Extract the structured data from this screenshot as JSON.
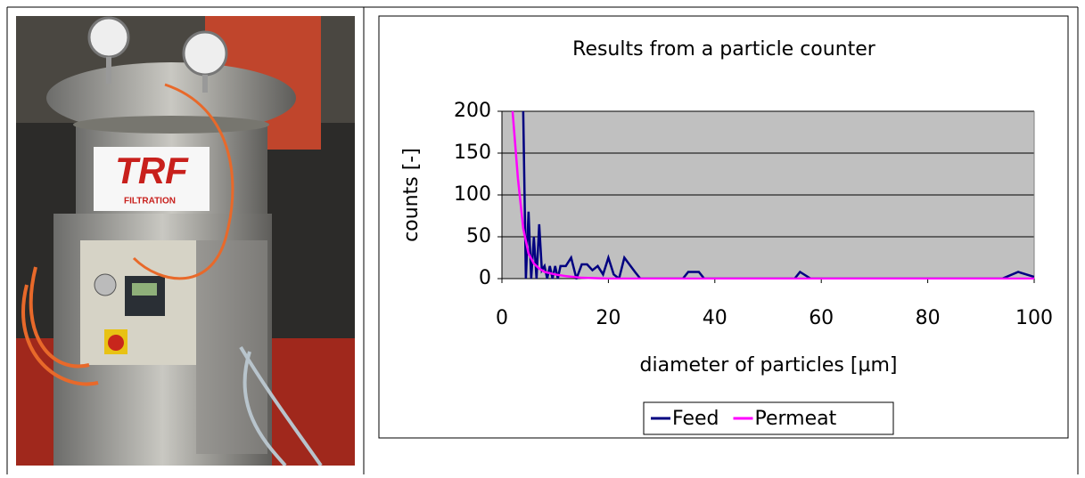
{
  "photo": {
    "logo": "TRF",
    "logo_subtitle": "FILTRATION"
  },
  "chart_data": {
    "type": "line",
    "title": "Results from a particle counter",
    "x_label": "diameter of particles [µm]",
    "y_label": "counts [-]",
    "xlim": [
      0,
      100
    ],
    "xticks": [
      0,
      20,
      40,
      60,
      80,
      100
    ],
    "ylim": [
      0,
      200
    ],
    "yticks": [
      0,
      50,
      100,
      150,
      200
    ],
    "grid": true,
    "legend": "bottom",
    "series": [
      {
        "name": "Feed",
        "color": "#000080",
        "x": [
          4,
          4.5,
          5,
          5.5,
          6,
          6.5,
          7,
          7.5,
          8,
          8.5,
          9,
          9.5,
          10,
          10.5,
          11,
          12,
          13,
          14,
          15,
          16,
          17,
          18,
          19,
          20,
          21,
          22,
          23,
          25,
          26,
          34,
          35,
          37,
          38,
          55,
          56,
          58,
          94,
          97,
          100
        ],
        "values": [
          200,
          0,
          80,
          0,
          50,
          0,
          65,
          10,
          15,
          0,
          15,
          0,
          15,
          0,
          15,
          15,
          25,
          0,
          17,
          17,
          10,
          15,
          5,
          25,
          5,
          0,
          25,
          8,
          0,
          0,
          8,
          8,
          0,
          0,
          8,
          0,
          0,
          8,
          2
        ]
      },
      {
        "name": "Permeat",
        "color": "#ff00ff",
        "x": [
          2,
          3,
          4,
          5,
          6,
          7,
          8,
          10,
          12,
          15,
          20,
          100
        ],
        "values": [
          200,
          120,
          60,
          30,
          18,
          12,
          8,
          5,
          3,
          1,
          0,
          0
        ]
      }
    ]
  }
}
